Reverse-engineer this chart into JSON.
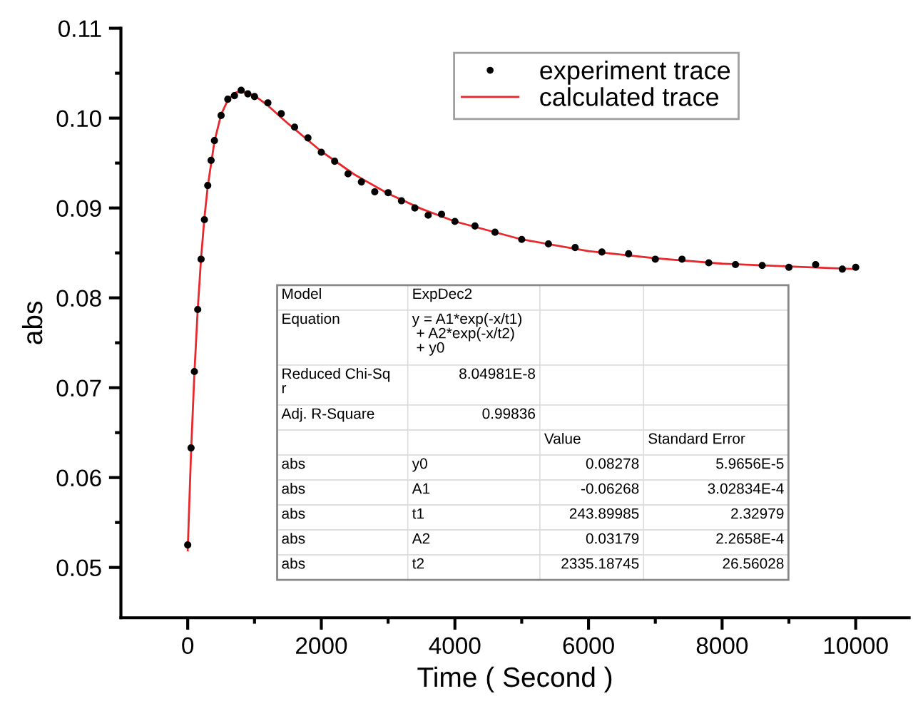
{
  "chart_data": {
    "type": "scatter",
    "xlabel": "Time ( Second )",
    "ylabel": "abs",
    "xlim": [
      -1000,
      10800
    ],
    "ylim": [
      0.0444,
      0.11
    ],
    "xticks": [
      0,
      {
        "value": 1000,
        "label": null
      },
      2000,
      {
        "value": 3000,
        "label": null
      },
      4000,
      {
        "value": 5000,
        "label": null
      },
      6000,
      {
        "value": 7000,
        "label": null
      },
      8000,
      {
        "value": 9000,
        "label": null
      },
      10000
    ],
    "yticks": [
      {
        "value": 0.05,
        "label": "0.05"
      },
      {
        "value": 0.055,
        "label": null
      },
      {
        "value": 0.06,
        "label": "0.06"
      },
      {
        "value": 0.065,
        "label": null
      },
      {
        "value": 0.07,
        "label": "0.07"
      },
      {
        "value": 0.075,
        "label": null
      },
      {
        "value": 0.08,
        "label": "0.08"
      },
      {
        "value": 0.085,
        "label": null
      },
      {
        "value": 0.09,
        "label": "0.09"
      },
      {
        "value": 0.095,
        "label": null
      },
      {
        "value": 0.1,
        "label": "0.10"
      },
      {
        "value": 0.105,
        "label": null
      },
      {
        "value": 0.11,
        "label": "0.11"
      }
    ],
    "grid": false,
    "legend": "top right",
    "series": [
      {
        "name": "experiment trace",
        "marker": "circle",
        "color": "#000000",
        "x": [
          0,
          50,
          100,
          150,
          200,
          250,
          300,
          350,
          400,
          500,
          600,
          700,
          800,
          900,
          1000,
          1200,
          1400,
          1600,
          1800,
          2000,
          2200,
          2400,
          2600,
          2800,
          3000,
          3200,
          3400,
          3600,
          3800,
          4000,
          4300,
          4600,
          5000,
          5400,
          5800,
          6200,
          6600,
          7000,
          7400,
          7800,
          8200,
          8600,
          9000,
          9400,
          9800,
          10000
        ],
        "values": [
          0.0525,
          0.0633,
          0.0718,
          0.0787,
          0.0843,
          0.0887,
          0.0925,
          0.0953,
          0.0975,
          0.1003,
          0.1021,
          0.1025,
          0.1031,
          0.1027,
          0.1024,
          0.1017,
          0.1005,
          0.099,
          0.0978,
          0.0962,
          0.0952,
          0.0938,
          0.0929,
          0.0918,
          0.0917,
          0.0908,
          0.09,
          0.0892,
          0.0893,
          0.0885,
          0.088,
          0.0873,
          0.0865,
          0.086,
          0.0856,
          0.0851,
          0.0849,
          0.0843,
          0.0843,
          0.0839,
          0.0837,
          0.0836,
          0.0834,
          0.0837,
          0.0832,
          0.0834
        ]
      },
      {
        "name": "calculated trace",
        "type": "line",
        "marker": "none",
        "line_style": "solid",
        "color": "#e8282c",
        "x": [
          0,
          50,
          100,
          150,
          200,
          250,
          300,
          400,
          500,
          600,
          700,
          800,
          1000,
          1200,
          1500,
          2000,
          2500,
          3000,
          3500,
          4000,
          5000,
          6000,
          7000,
          8000,
          9000,
          10000
        ],
        "values": [
          0.0519,
          0.0628,
          0.0716,
          0.0787,
          0.0844,
          0.0889,
          0.0924,
          0.0974,
          0.1004,
          0.102,
          0.1028,
          0.103,
          0.1025,
          0.1014,
          0.0994,
          0.0963,
          0.0937,
          0.0916,
          0.0899,
          0.0885,
          0.0865,
          0.0852,
          0.0844,
          0.0838,
          0.0835,
          0.0832
        ]
      }
    ],
    "annotations": [
      "Model\tExpDec2\t\t",
      "Equation\ty = A1*exp(-x/t1)\n + A2*exp(-x/t2)\n + y0\t\t",
      "Reduced Chi-Sq\nr\t8.04981E-8\t\t",
      "Adj. R-Square\t0.99836\t\t",
      "\t\tValue\tStandard Error",
      "abs\ty0\t0.08278\t5.9656E-5",
      "abs\tA1\t-0.06268\t3.02834E-4",
      "abs\tt1\t243.89985\t2.32979",
      "abs\tA2\t0.03179\t2.2658E-4",
      "abs\tt2\t2335.18745\t26.56028"
    ]
  }
}
